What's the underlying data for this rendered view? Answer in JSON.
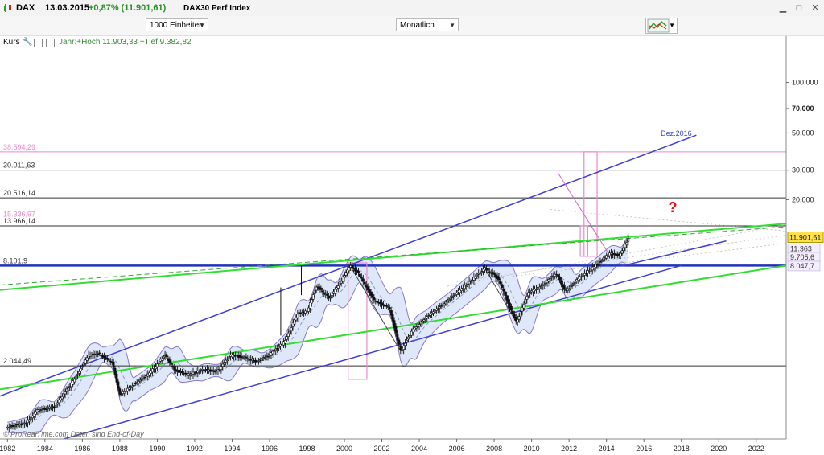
{
  "window": {
    "symbol": "DAX",
    "date": "13.03.2015",
    "change": "+0,87% (11.901,61)",
    "name": "DAX30 Perf Index"
  },
  "toolbar": {
    "units_select": "1000 Einheiten",
    "interval_select": "Monatlich"
  },
  "panel": {
    "label": "Kurs",
    "info": "Jahr:+Hoch 11.903,33 +Tief 9.382,82"
  },
  "footer": "© ProRealTime.com Daten sind End-of-Day",
  "colors": {
    "up": "#2a9d2a",
    "channel": "#4040d0",
    "trend": "#33dd33",
    "support": "#2233bb",
    "pink": "#ee88cc",
    "band_fill": "#d8e4f8",
    "band_edge": "#8877cc"
  },
  "chart_data": {
    "type": "candlestick",
    "scale": "log",
    "ylim": [
      750,
      160000
    ],
    "xlim": [
      1981.6,
      2023.6
    ],
    "x_ticks": [
      "1982",
      "1984",
      "1986",
      "1988",
      "1990",
      "1992",
      "1994",
      "1996",
      "1998",
      "2000",
      "2002",
      "2004",
      "2006",
      "2008",
      "2010",
      "2012",
      "2014",
      "2016",
      "2018",
      "2020",
      "2022"
    ],
    "y_ticks": [
      {
        "value": 100000,
        "label": "100.000"
      },
      {
        "value": 70000,
        "label": "70.000",
        "bold": true
      },
      {
        "value": 50000,
        "label": "50.000"
      },
      {
        "value": 30000,
        "label": "30.000"
      },
      {
        "value": 20000,
        "label": "20.000"
      }
    ],
    "right_labels": [
      {
        "value": 11901.61,
        "label": "11.901,61",
        "style": "last"
      },
      {
        "value": 11363,
        "label": "11.363",
        "style": "band"
      },
      {
        "value": 9705.6,
        "label": "9.705,6",
        "style": "band"
      },
      {
        "value": 8047.7,
        "label": "8.047,7",
        "style": "band"
      }
    ],
    "horizontal_levels": [
      {
        "value": 38594.29,
        "label": "38.594,29",
        "color": "#ee88cc"
      },
      {
        "value": 30011.63,
        "label": "30.011,63",
        "color": "#333333"
      },
      {
        "value": 20516.14,
        "label": "20.516,14",
        "color": "#333333"
      },
      {
        "value": 15336.97,
        "label": "15.336,97",
        "color": "#ee88cc"
      },
      {
        "value": 13966.14,
        "label": "13.966,14",
        "color": "#333333"
      },
      {
        "value": 8101.9,
        "label": "8.101,9",
        "color": "#2233bb",
        "bold": true
      },
      {
        "value": 2044.49,
        "label": "2.044,49",
        "color": "#333333"
      }
    ],
    "annotations": [
      {
        "text": "Dez.2016",
        "x": 2016.9,
        "y": 48000
      },
      {
        "text": "?",
        "x": 2017.3,
        "y": 16800
      }
    ],
    "trendlines": [
      {
        "name": "channel-top",
        "x1": 1981.6,
        "y1": 1350,
        "x2": 2018.8,
        "y2": 48500,
        "color": "#4040d0",
        "width": 1.5
      },
      {
        "name": "channel-mid",
        "x1": 2014.8,
        "y1": 8047.7,
        "x2": 2020.4,
        "y2": 11363,
        "color": "#4040d0",
        "width": 1.5
      },
      {
        "name": "channel-bottom",
        "x1": 1985.0,
        "y1": 750,
        "x2": 2018.0,
        "y2": 8101.9,
        "color": "#4040d0",
        "width": 1.5
      },
      {
        "name": "green-upper",
        "x1": 1981.6,
        "y1": 5800,
        "x2": 2023.6,
        "y2": 14400,
        "color": "#33dd33",
        "width": 2
      },
      {
        "name": "green-lower",
        "x1": 1981.6,
        "y1": 1480,
        "x2": 2023.6,
        "y2": 8101.9,
        "color": "#33dd33",
        "width": 2
      },
      {
        "name": "green-dashed",
        "x1": 1981.6,
        "y1": 6200,
        "x2": 2023.6,
        "y2": 13800,
        "color": "#33aa33",
        "width": 1,
        "dash": true
      },
      {
        "name": "pink-diag",
        "x1": 2011.4,
        "y1": 29000,
        "x2": 2014.2,
        "y2": 9200,
        "color": "#cc66cc",
        "width": 1
      }
    ],
    "rectangles": [
      {
        "x1": 2000.2,
        "x2": 2001.2,
        "y1": 1700,
        "y2": 8400
      },
      {
        "x1": 2012.8,
        "x2": 2013.5,
        "y1": 9200,
        "y2": 38594.29
      },
      {
        "x1": 2012.6,
        "x2": 2013.0,
        "y1": 9200,
        "y2": 14000
      }
    ],
    "spikes": [
      {
        "x": 1996.6,
        "lo": 3100,
        "hi": 6000
      },
      {
        "x": 1997.7,
        "lo": 5400,
        "hi": 8100
      },
      {
        "x": 1998.0,
        "lo": 1200,
        "hi": 6600
      }
    ],
    "series": [
      {
        "name": "DAX",
        "points": [
          [
            1982.0,
            880
          ],
          [
            1983.0,
            930
          ],
          [
            1983.6,
            1120
          ],
          [
            1984.5,
            1160
          ],
          [
            1985.5,
            1650
          ],
          [
            1986.3,
            2350
          ],
          [
            1986.8,
            2450
          ],
          [
            1987.6,
            2150
          ],
          [
            1988.0,
            1380
          ],
          [
            1988.8,
            1600
          ],
          [
            1989.6,
            1850
          ],
          [
            1990.4,
            2380
          ],
          [
            1990.9,
            1950
          ],
          [
            1991.6,
            1800
          ],
          [
            1992.5,
            1940
          ],
          [
            1993.2,
            1890
          ],
          [
            1993.9,
            2350
          ],
          [
            1994.4,
            2330
          ],
          [
            1995.3,
            2170
          ],
          [
            1996.0,
            2380
          ],
          [
            1996.8,
            2850
          ],
          [
            1997.5,
            4200
          ],
          [
            1998.0,
            4300
          ],
          [
            1998.5,
            6100
          ],
          [
            1999.2,
            5150
          ],
          [
            1999.8,
            6500
          ],
          [
            2000.3,
            8100
          ],
          [
            2000.7,
            7400
          ],
          [
            2001.6,
            5000
          ],
          [
            2002.4,
            4500
          ],
          [
            2003.0,
            2500
          ],
          [
            2003.6,
            3300
          ],
          [
            2004.5,
            4100
          ],
          [
            2005.5,
            5000
          ],
          [
            2006.5,
            6200
          ],
          [
            2007.5,
            7800
          ],
          [
            2008.2,
            6800
          ],
          [
            2008.8,
            4650
          ],
          [
            2009.2,
            3700
          ],
          [
            2009.8,
            5500
          ],
          [
            2010.6,
            6200
          ],
          [
            2011.3,
            7300
          ],
          [
            2011.8,
            5700
          ],
          [
            2012.6,
            6900
          ],
          [
            2013.4,
            8100
          ],
          [
            2014.2,
            9600
          ],
          [
            2014.7,
            9300
          ],
          [
            2015.2,
            11901.61
          ]
        ]
      }
    ]
  }
}
